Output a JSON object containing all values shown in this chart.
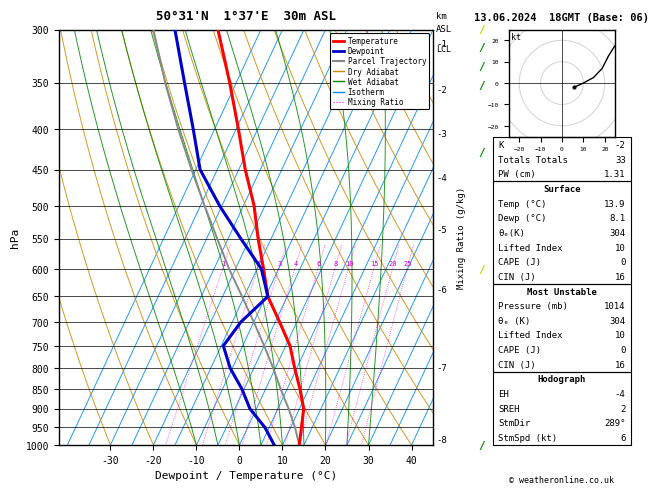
{
  "title_left": "50°31'N  1°37'E  30m ASL",
  "title_right": "13.06.2024  18GMT (Base: 06)",
  "xlabel": "Dewpoint / Temperature (°C)",
  "ylabel_left": "hPa",
  "pressure_levels": [
    300,
    350,
    400,
    450,
    500,
    550,
    600,
    650,
    700,
    750,
    800,
    850,
    900,
    950,
    1000
  ],
  "pressure_labels": [
    "300",
    "350",
    "400",
    "450",
    "500",
    "550",
    "600",
    "650",
    "700",
    "750",
    "800",
    "850",
    "900",
    "950",
    "1000"
  ],
  "temp_ticks": [
    -30,
    -20,
    -10,
    0,
    10,
    20,
    30,
    40
  ],
  "km_ticks": [
    8,
    7,
    6,
    5,
    4,
    3,
    2,
    1
  ],
  "km_pressures": [
    305,
    375,
    470,
    560,
    650,
    740,
    840,
    960
  ],
  "lcl_pressure": 947,
  "isotherm_temps": [
    -40,
    -35,
    -30,
    -25,
    -20,
    -15,
    -10,
    -5,
    0,
    5,
    10,
    15,
    20,
    25,
    30,
    35,
    40
  ],
  "dry_adiabat_thetas": [
    -30,
    -20,
    -10,
    0,
    10,
    20,
    30,
    40,
    50,
    60,
    70,
    80,
    90,
    100
  ],
  "wet_adiabat_temps": [
    -10,
    -5,
    0,
    5,
    10,
    15,
    20,
    25,
    30
  ],
  "mixing_ratio_values": [
    1,
    2,
    3,
    4,
    6,
    8,
    10,
    15,
    20,
    25
  ],
  "temperature_profile": {
    "pressure": [
      1000,
      950,
      900,
      850,
      800,
      750,
      700,
      650,
      600,
      550,
      500,
      450,
      400,
      350,
      300
    ],
    "temp": [
      13.9,
      12.5,
      11.0,
      8.0,
      4.5,
      1.0,
      -4.0,
      -9.5,
      -13.5,
      -18.0,
      -22.5,
      -28.5,
      -34.5,
      -41.5,
      -50.0
    ]
  },
  "dewpoint_profile": {
    "pressure": [
      1000,
      950,
      900,
      850,
      800,
      750,
      700,
      650,
      600,
      550,
      500,
      450,
      400,
      350,
      300
    ],
    "temp": [
      8.1,
      4.0,
      -1.5,
      -5.5,
      -10.5,
      -14.5,
      -13.0,
      -9.5,
      -14.0,
      -22.0,
      -30.5,
      -39.0,
      -45.0,
      -52.0,
      -60.0
    ]
  },
  "parcel_profile": {
    "pressure": [
      1000,
      950,
      900,
      850,
      800,
      750,
      700,
      650,
      600,
      550,
      500,
      450,
      400,
      350,
      300
    ],
    "temp": [
      13.9,
      11.0,
      7.5,
      3.5,
      -0.5,
      -5.0,
      -10.0,
      -15.5,
      -21.5,
      -27.5,
      -34.0,
      -41.0,
      -48.5,
      -56.5,
      -65.0
    ]
  },
  "colors": {
    "temperature": "#FF0000",
    "dewpoint": "#0000CC",
    "parcel": "#888888",
    "dry_adiabat": "#CC8800",
    "wet_adiabat": "#008800",
    "isotherm": "#0088FF",
    "mixing_ratio": "#FF00FF",
    "background": "#FFFFFF",
    "grid": "#000000"
  },
  "wind_barb_data": [
    {
      "pressure": 1000,
      "color": "#CCCC00"
    },
    {
      "pressure": 950,
      "color": "#008800"
    },
    {
      "pressure": 900,
      "color": "#008800"
    },
    {
      "pressure": 850,
      "color": "#008800"
    },
    {
      "pressure": 700,
      "color": "#008800"
    },
    {
      "pressure": 500,
      "color": "#CCCC00"
    },
    {
      "pressure": 300,
      "color": "#008800"
    }
  ],
  "stats": {
    "K": "-2",
    "Totals_Totals": "33",
    "PW_cm": "1.31",
    "Surf_Temp": "13.9",
    "Surf_Dewp": "8.1",
    "Surf_theta_e": "304",
    "Surf_LI": "10",
    "Surf_CAPE": "0",
    "Surf_CIN": "16",
    "MU_Pressure": "1014",
    "MU_theta_e": "304",
    "MU_LI": "10",
    "MU_CAPE": "0",
    "MU_CIN": "16",
    "EH": "-4",
    "SREH": "2",
    "StmDir": "289°",
    "StmSpd": "6"
  },
  "hodo_winds": {
    "speeds": [
      6,
      10,
      15,
      20,
      25,
      30
    ],
    "directions": [
      289,
      270,
      260,
      250,
      240,
      235
    ]
  },
  "hodo_gray_winds": {
    "speeds": [
      35,
      40
    ],
    "directions": [
      230,
      225
    ]
  }
}
